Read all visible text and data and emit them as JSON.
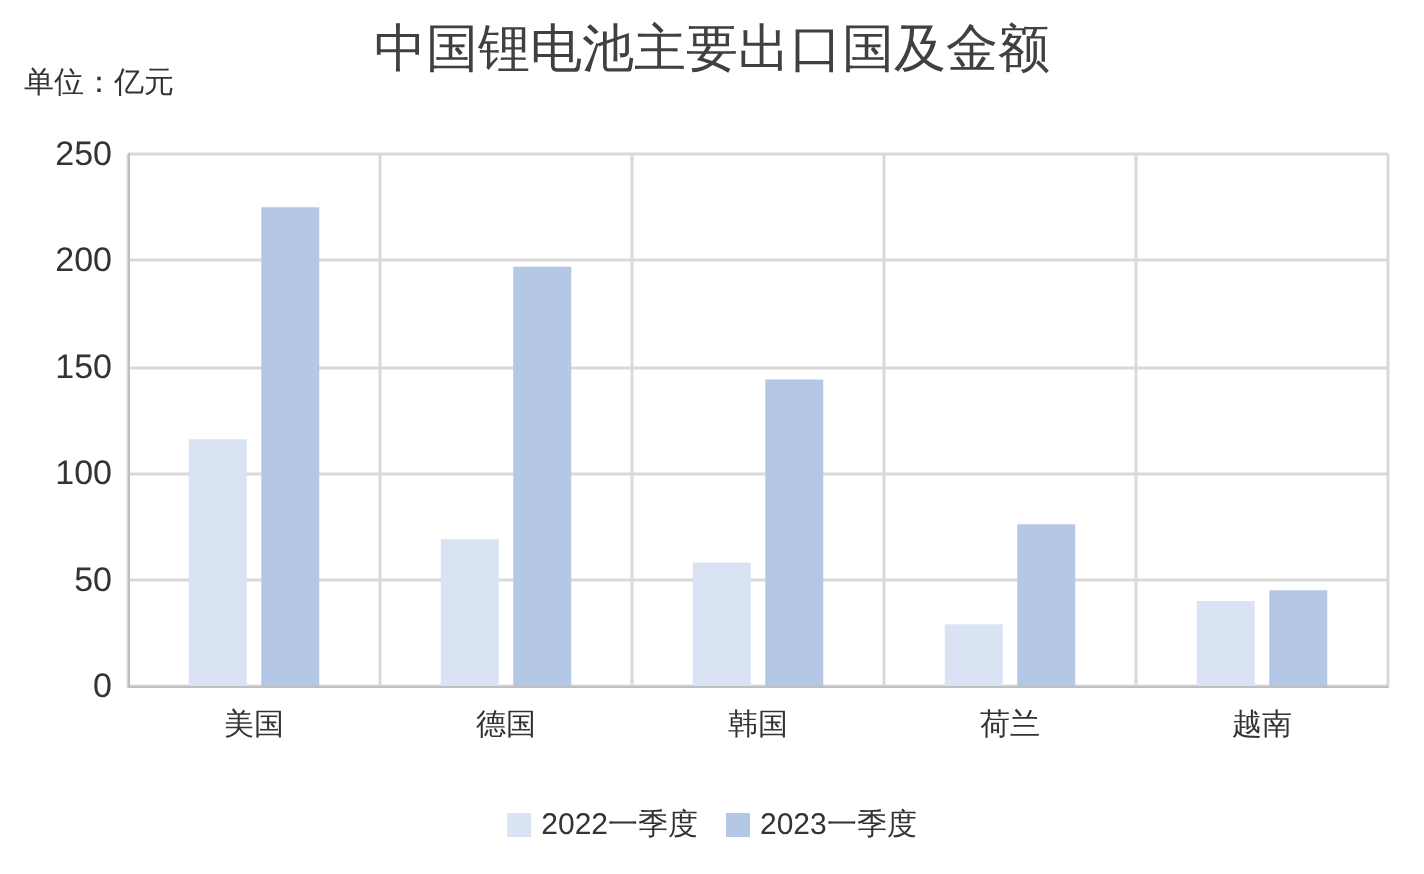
{
  "chart_data": {
    "type": "bar",
    "title": "中国锂电池主要出口国及金额",
    "ylabel": "单位：亿元",
    "categories": [
      "美国",
      "德国",
      "韩国",
      "荷兰",
      "越南"
    ],
    "series": [
      {
        "name": "2022一季度",
        "color": "#dae3f3",
        "values": [
          116,
          69,
          58,
          29,
          40
        ]
      },
      {
        "name": "2023一季度",
        "color": "#b4c7e7",
        "values": [
          225,
          197,
          144,
          76,
          45
        ]
      }
    ],
    "ylim": [
      0,
      250
    ],
    "yticks": [
      0,
      50,
      100,
      150,
      200,
      250
    ],
    "grid": true,
    "legend": "bottom"
  }
}
